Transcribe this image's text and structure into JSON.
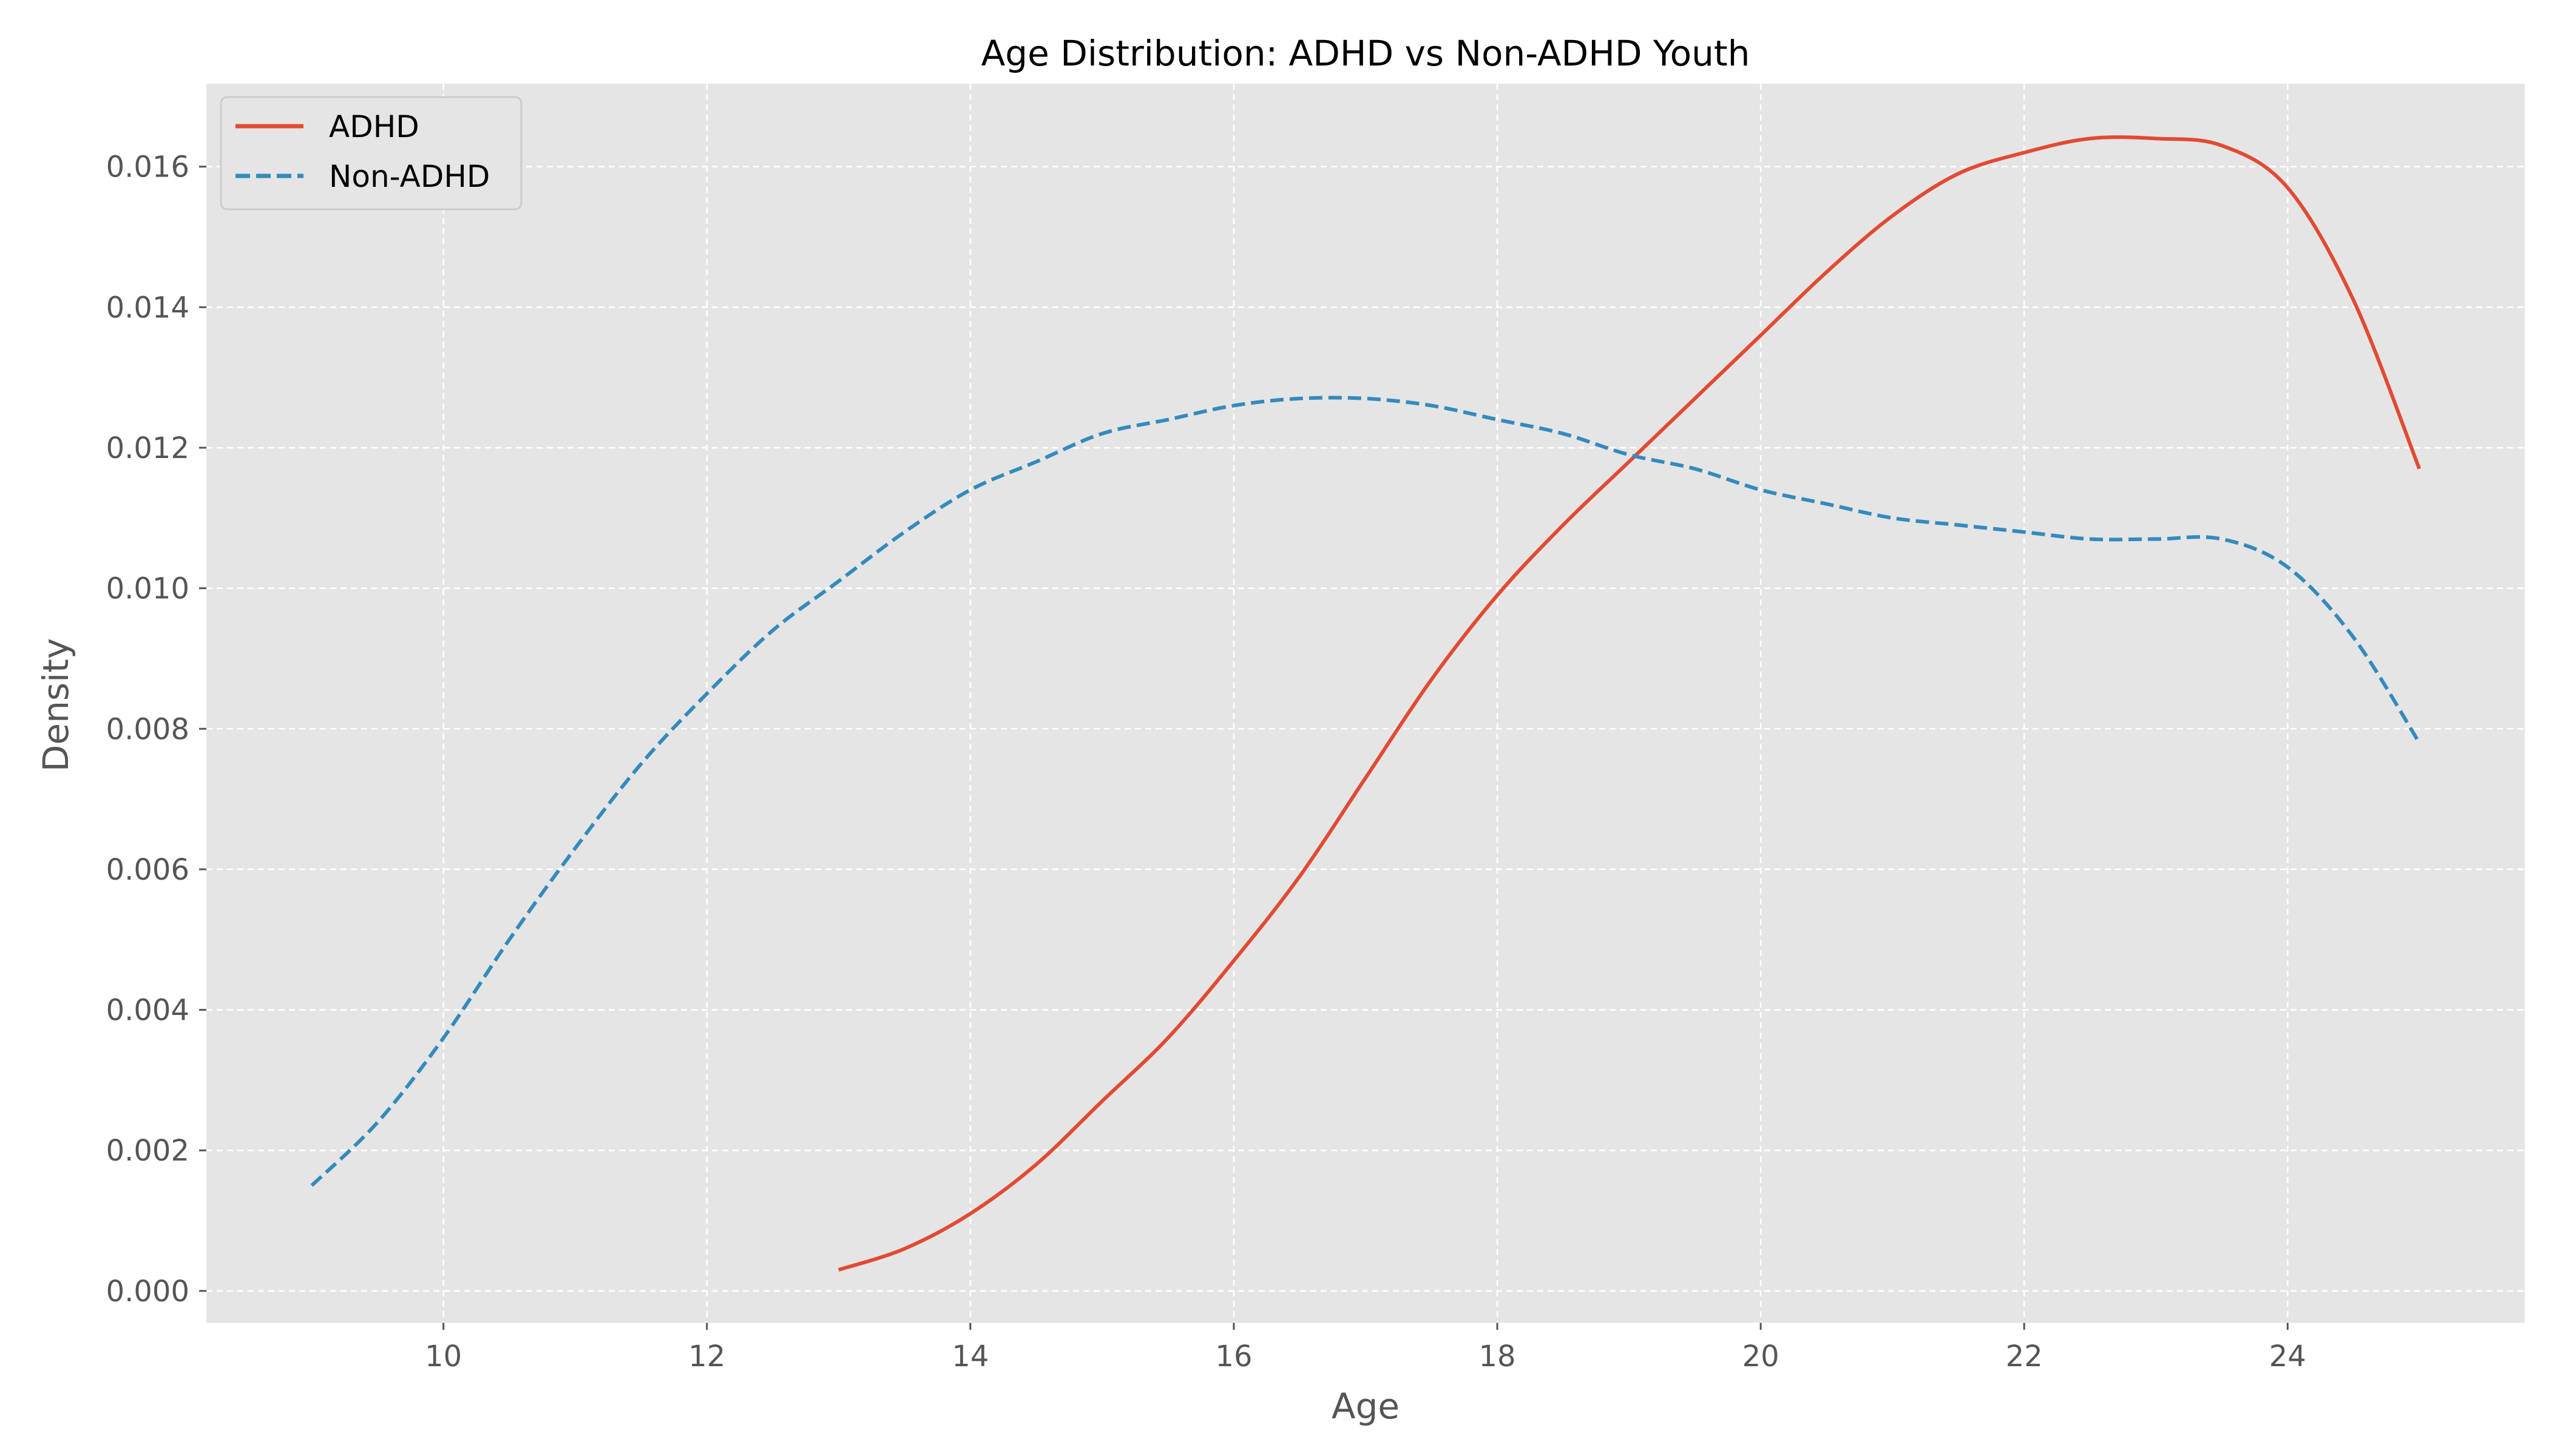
{
  "chart_data": {
    "type": "line",
    "title": "Age Distribution: ADHD vs Non-ADHD Youth",
    "xlabel": "Age",
    "ylabel": "Density",
    "xlim": [
      8.2,
      25.8
    ],
    "ylim": [
      -0.00045,
      0.01718
    ],
    "x_ticks": [
      10,
      12,
      14,
      16,
      18,
      20,
      22,
      24
    ],
    "y_ticks": [
      0.0,
      0.002,
      0.004,
      0.006,
      0.008,
      0.01,
      0.012,
      0.014,
      0.016
    ],
    "y_tick_labels": [
      "0.000",
      "0.002",
      "0.004",
      "0.006",
      "0.008",
      "0.010",
      "0.012",
      "0.014",
      "0.016"
    ],
    "x_tick_labels": [
      "10",
      "12",
      "14",
      "16",
      "18",
      "20",
      "22",
      "24"
    ],
    "grid": true,
    "legend_position": "top-left",
    "background_color": "#E5E5E5",
    "series": [
      {
        "name": "ADHD",
        "color": "#E24A33",
        "style": "solid",
        "x": [
          13,
          13.5,
          14,
          14.5,
          15,
          15.5,
          16,
          16.5,
          17,
          17.5,
          18,
          18.5,
          19,
          19.5,
          20,
          20.5,
          21,
          21.5,
          22,
          22.5,
          23,
          23.5,
          24,
          24.5,
          25
        ],
        "y": [
          0.0003,
          0.0006,
          0.0011,
          0.0018,
          0.0027,
          0.0036,
          0.0047,
          0.0059,
          0.0073,
          0.0087,
          0.0099,
          0.0109,
          0.0118,
          0.0127,
          0.0136,
          0.0145,
          0.0153,
          0.0159,
          0.0162,
          0.0164,
          0.0164,
          0.0163,
          0.0157,
          0.0141,
          0.0117
        ]
      },
      {
        "name": "Non-ADHD",
        "color": "#348ABD",
        "style": "dashed",
        "x": [
          9,
          9.5,
          10,
          10.5,
          11,
          11.5,
          12,
          12.5,
          13,
          13.5,
          14,
          14.5,
          15,
          15.5,
          16,
          16.5,
          17,
          17.5,
          18,
          18.5,
          19,
          19.5,
          20,
          20.5,
          21,
          21.5,
          22,
          22.5,
          23,
          23.5,
          24,
          24.5,
          25
        ],
        "y": [
          0.0015,
          0.0024,
          0.0036,
          0.005,
          0.0063,
          0.0075,
          0.0085,
          0.0094,
          0.0101,
          0.0108,
          0.0114,
          0.0118,
          0.0122,
          0.0124,
          0.0126,
          0.0127,
          0.0127,
          0.0126,
          0.0124,
          0.0122,
          0.0119,
          0.0117,
          0.0114,
          0.0112,
          0.011,
          0.0109,
          0.0108,
          0.0107,
          0.0107,
          0.0107,
          0.0103,
          0.0093,
          0.0078
        ]
      }
    ]
  }
}
